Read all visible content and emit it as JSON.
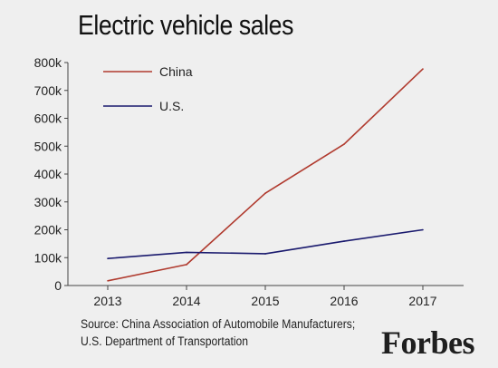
{
  "chart_data": {
    "type": "line",
    "title": "Electric vehicle sales",
    "xlabel": "",
    "ylabel": "",
    "x": [
      "2013",
      "2014",
      "2015",
      "2016",
      "2017"
    ],
    "ylim": [
      0,
      800000
    ],
    "y_ticks": [
      0,
      100000,
      200000,
      300000,
      400000,
      500000,
      600000,
      700000,
      800000
    ],
    "y_tick_labels": [
      "0",
      "100k",
      "200k",
      "300k",
      "400k",
      "500k",
      "600k",
      "700k",
      "800k"
    ],
    "grid": false,
    "legend_placement": "top-left",
    "series": [
      {
        "name": "China",
        "color": "#b03a2e",
        "values": [
          17000,
          75000,
          331000,
          507000,
          777000
        ]
      },
      {
        "name": "U.S.",
        "color": "#1a1a6e",
        "values": [
          97000,
          119000,
          114000,
          159000,
          200000
        ]
      }
    ]
  },
  "source": {
    "line1": "Source: China Association of Automobile Manufacturers;",
    "line2": "U.S. Department of Transportation"
  },
  "logo": "Forbes"
}
